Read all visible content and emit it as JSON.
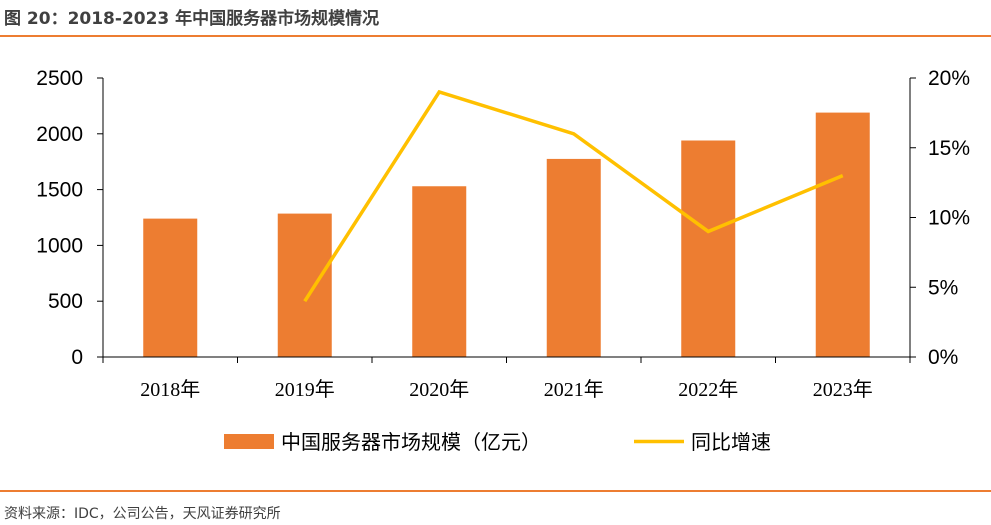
{
  "figure": {
    "title": "图 20：2018-2023 年中国服务器市场规模情况",
    "source": "资料来源：IDC，公司公告，天风证券研究所"
  },
  "chart_data": {
    "type": "bar",
    "categories": [
      "2018年",
      "2019年",
      "2020年",
      "2021年",
      "2022年",
      "2023年"
    ],
    "series": [
      {
        "name": "中国服务器市场规模（亿元）",
        "type": "bar",
        "axis": "left",
        "color": "#ED7D31",
        "values": [
          1240,
          1285,
          1530,
          1775,
          1940,
          2190
        ]
      },
      {
        "name": "同比增速",
        "type": "line",
        "axis": "right",
        "color": "#FFC000",
        "values": [
          null,
          4,
          19,
          16,
          9,
          13
        ]
      }
    ],
    "y_left": {
      "min": 0,
      "max": 2500,
      "ticks": [
        "0",
        "500",
        "1000",
        "1500",
        "2000",
        "2500"
      ]
    },
    "y_right": {
      "min": 0,
      "max": 20,
      "ticks": [
        "0%",
        "5%",
        "10%",
        "15%",
        "20%"
      ]
    },
    "grid": false,
    "legend_position": "bottom"
  }
}
